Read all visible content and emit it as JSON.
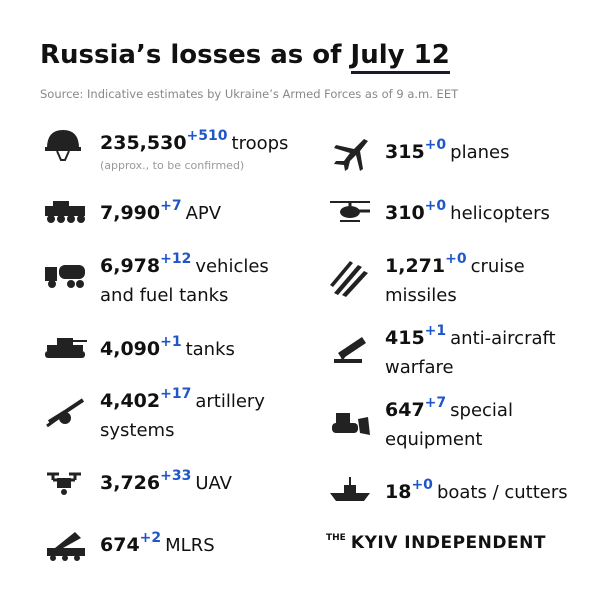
{
  "header": {
    "title_start": "Russia’s losses as of",
    "title_date": "July 12",
    "source": "Source: Indicative estimates by Ukraine’s Armed Forces as of 9 a.m. EET"
  },
  "left": [
    {
      "value": "235,530",
      "change": "+510",
      "label": "troops",
      "note": "(approx., to be confirmed)"
    },
    {
      "value": "7,990",
      "change": "+7",
      "label": "APV"
    },
    {
      "value": "6,978",
      "change": "+12",
      "label": "vehicles",
      "label2": "and fuel tanks"
    },
    {
      "value": "4,090",
      "change": "+1",
      "label": "tanks"
    },
    {
      "value": "4,402",
      "change": "+17",
      "label": "artillery",
      "label2": "systems"
    },
    {
      "value": "3,726",
      "change": "+33",
      "label": "UAV"
    },
    {
      "value": "674",
      "change": "+2",
      "label": "MLRS"
    }
  ],
  "right": [
    {
      "value": "315",
      "change": "+0",
      "label": "planes"
    },
    {
      "value": "310",
      "change": "+0",
      "label": "helicopters"
    },
    {
      "value": "1,271",
      "change": "+0",
      "label": "cruise",
      "label2": "missiles"
    },
    {
      "value": "415",
      "change": "+1",
      "label": "anti-aircraft",
      "label2": "warfare"
    },
    {
      "value": "647",
      "change": "+7",
      "label": "special",
      "label2": "equipment"
    },
    {
      "value": "18",
      "change": "+0",
      "label": "boats / cutters"
    }
  ],
  "brand": {
    "small": "THE",
    "name": "KYIV INDEPENDENT"
  }
}
